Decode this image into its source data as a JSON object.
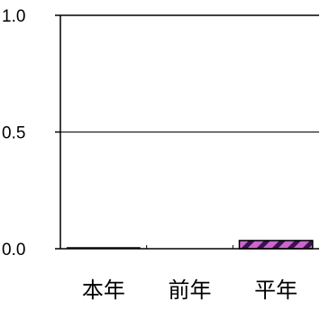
{
  "chart_data": {
    "type": "bar",
    "title": "",
    "xlabel": "",
    "ylabel": "",
    "categories": [
      "本年",
      "前年",
      "平年"
    ],
    "series": [
      {
        "values": [
          0.002,
          0.0,
          0.035
        ],
        "colors": [
          "#1a1a1a",
          "#1a1a1a",
          "#cc66cc"
        ],
        "pattern": [
          null,
          null,
          "diagonal-stripes"
        ]
      }
    ],
    "ylim": [
      0,
      1
    ],
    "yticks": [
      "0.0",
      "0.5",
      "1.0"
    ],
    "ytick_values": [
      0,
      0.5,
      1
    ],
    "grid": "horizontal",
    "legend": "none"
  }
}
